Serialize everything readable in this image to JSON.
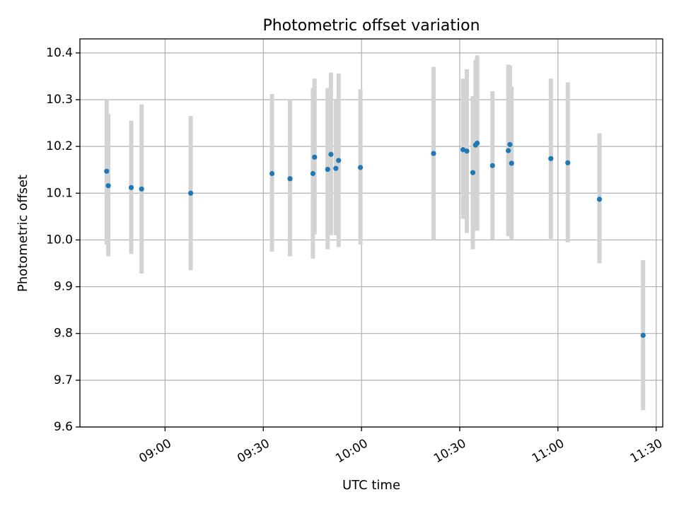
{
  "chart_data": {
    "type": "scatter",
    "title": "Photometric offset variation",
    "xlabel": "UTC time",
    "ylabel": "Photometric offset",
    "grid": true,
    "xlim": [
      "08:34",
      "11:32"
    ],
    "ylim": [
      9.6,
      10.43
    ],
    "x_ticks": [
      "09:00",
      "09:30",
      "10:00",
      "10:30",
      "11:00",
      "11:30"
    ],
    "y_ticks": [
      "9.6",
      "9.7",
      "9.8",
      "9.9",
      "10.0",
      "10.1",
      "10.2",
      "10.3",
      "10.4"
    ],
    "series": [
      {
        "marker_color": "#1f77b4",
        "errorbar_color": "#d3d3d3",
        "points": [
          {
            "x": "08:42:10",
            "y": 10.147,
            "lo": 9.99,
            "hi": 10.3
          },
          {
            "x": "08:42:40",
            "y": 10.116,
            "lo": 9.965,
            "hi": 10.27
          },
          {
            "x": "08:49:40",
            "y": 10.112,
            "lo": 9.97,
            "hi": 10.255
          },
          {
            "x": "08:52:50",
            "y": 10.109,
            "lo": 9.928,
            "hi": 10.29
          },
          {
            "x": "09:07:50",
            "y": 10.1,
            "lo": 9.935,
            "hi": 10.265
          },
          {
            "x": "09:32:40",
            "y": 10.142,
            "lo": 9.975,
            "hi": 10.312
          },
          {
            "x": "09:38:10",
            "y": 10.131,
            "lo": 9.965,
            "hi": 10.3
          },
          {
            "x": "09:45:10",
            "y": 10.142,
            "lo": 9.96,
            "hi": 10.325
          },
          {
            "x": "09:45:40",
            "y": 10.177,
            "lo": 10.012,
            "hi": 10.345
          },
          {
            "x": "09:49:40",
            "y": 10.151,
            "lo": 9.98,
            "hi": 10.325
          },
          {
            "x": "09:50:40",
            "y": 10.183,
            "lo": 10.01,
            "hi": 10.358
          },
          {
            "x": "09:52:10",
            "y": 10.153,
            "lo": 10.01,
            "hi": 10.3
          },
          {
            "x": "09:53:00",
            "y": 10.17,
            "lo": 9.985,
            "hi": 10.356
          },
          {
            "x": "09:59:40",
            "y": 10.155,
            "lo": 9.99,
            "hi": 10.322
          },
          {
            "x": "10:22:00",
            "y": 10.185,
            "lo": 10.0,
            "hi": 10.37
          },
          {
            "x": "10:31:00",
            "y": 10.193,
            "lo": 10.045,
            "hi": 10.345
          },
          {
            "x": "10:32:10",
            "y": 10.19,
            "lo": 10.015,
            "hi": 10.365
          },
          {
            "x": "10:34:00",
            "y": 10.144,
            "lo": 9.98,
            "hi": 10.308
          },
          {
            "x": "10:34:50",
            "y": 10.203,
            "lo": 10.02,
            "hi": 10.385
          },
          {
            "x": "10:35:20",
            "y": 10.207,
            "lo": 10.02,
            "hi": 10.395
          },
          {
            "x": "10:40:00",
            "y": 10.159,
            "lo": 10.0,
            "hi": 10.318
          },
          {
            "x": "10:44:50",
            "y": 10.191,
            "lo": 10.008,
            "hi": 10.375
          },
          {
            "x": "10:45:20",
            "y": 10.204,
            "lo": 10.035,
            "hi": 10.373
          },
          {
            "x": "10:45:50",
            "y": 10.164,
            "lo": 10.0,
            "hi": 10.328
          },
          {
            "x": "10:57:50",
            "y": 10.174,
            "lo": 10.002,
            "hi": 10.345
          },
          {
            "x": "11:03:00",
            "y": 10.165,
            "lo": 9.995,
            "hi": 10.337
          },
          {
            "x": "11:12:40",
            "y": 10.087,
            "lo": 9.95,
            "hi": 10.228
          },
          {
            "x": "11:26:00",
            "y": 9.796,
            "lo": 9.636,
            "hi": 9.957
          }
        ]
      }
    ]
  }
}
